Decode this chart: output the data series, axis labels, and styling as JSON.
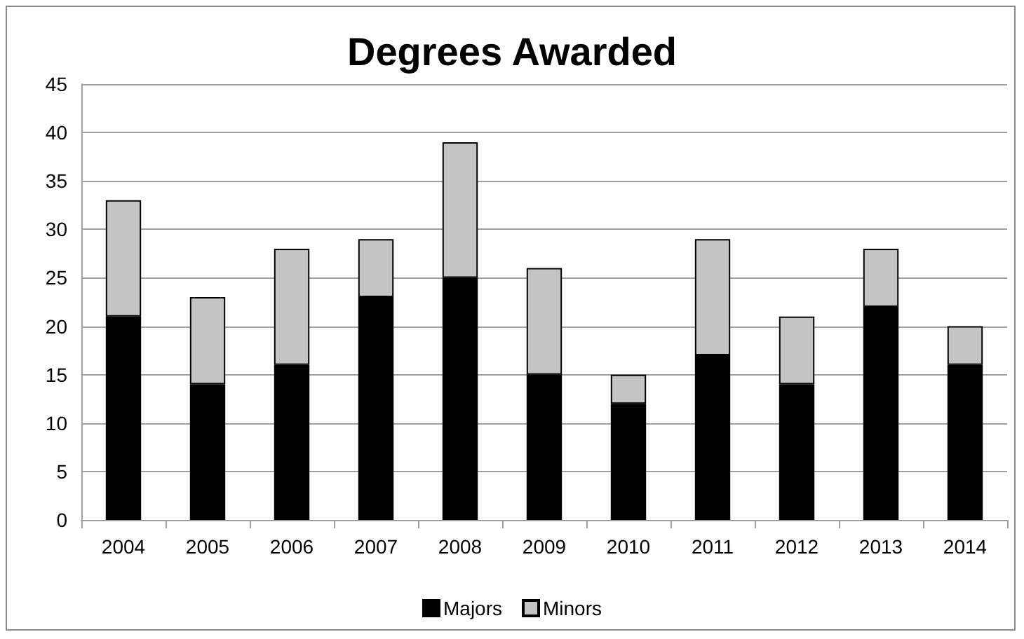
{
  "chart_data": {
    "type": "bar",
    "title": "Degrees Awarded",
    "categories": [
      "2004",
      "2005",
      "2006",
      "2007",
      "2008",
      "2009",
      "2010",
      "2011",
      "2012",
      "2013",
      "2014"
    ],
    "series": [
      {
        "name": "Majors",
        "color": "#000000",
        "values": [
          21,
          14,
          16,
          23,
          25,
          15,
          12,
          17,
          14,
          22,
          16
        ]
      },
      {
        "name": "Minors",
        "color": "#c4c4c4",
        "values": [
          12,
          9,
          12,
          6,
          14,
          11,
          3,
          12,
          7,
          6,
          4
        ]
      }
    ],
    "stacked": true,
    "ylim": [
      0,
      45
    ],
    "yticks": [
      0,
      5,
      10,
      15,
      20,
      25,
      30,
      35,
      40,
      45
    ],
    "grid": "y",
    "legend": "bottom"
  }
}
